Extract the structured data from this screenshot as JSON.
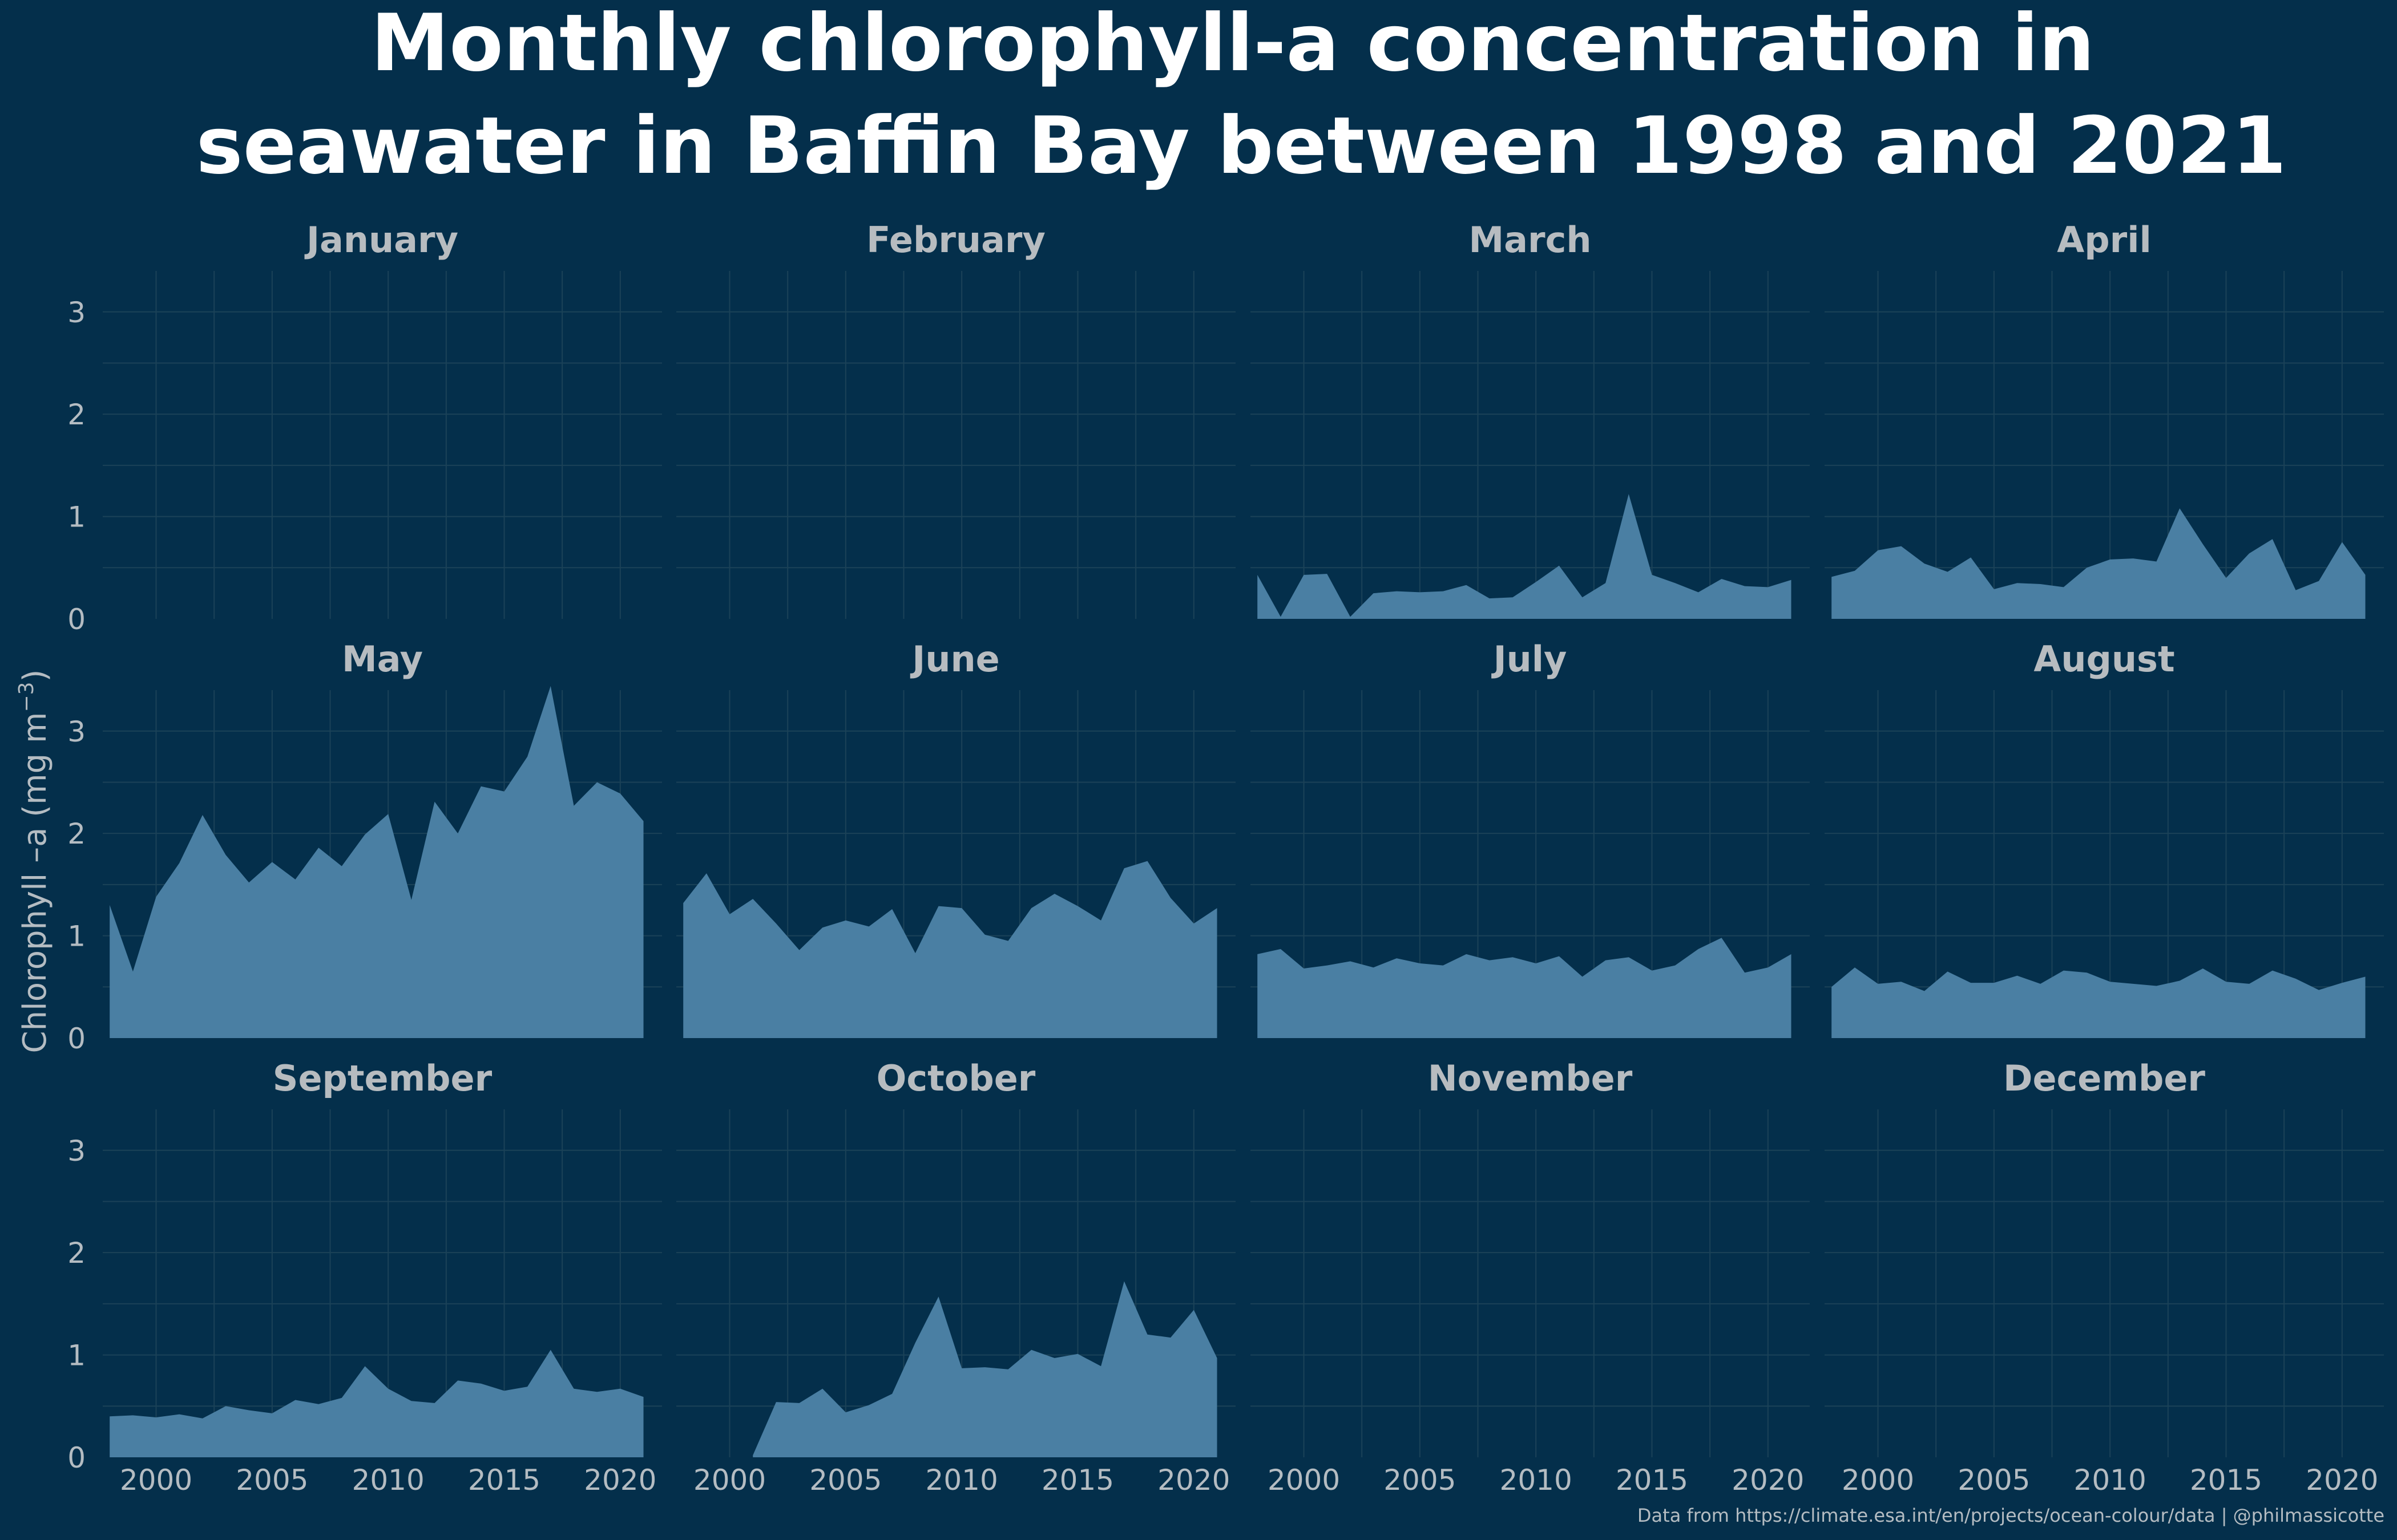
{
  "chart_data": {
    "type": "area",
    "title": [
      "Monthly chlorophyll-a concentration in",
      "seawater in Baffin Bay between 1998 and 2021"
    ],
    "ylabel": "Chlorophyll –a (mg m",
    "ylabel_superscript": "−3",
    "ylabel_close": ")",
    "caption": "Data from https://climate.esa.int/en/projects/ocean-colour/data | @philmassicotte",
    "ylim": [
      0,
      3.4
    ],
    "xlim": [
      1997.7,
      2021.8
    ],
    "yticks": [
      0,
      1,
      2,
      3
    ],
    "xticks": [
      2000,
      2005,
      2010,
      2015,
      2020
    ],
    "grid": true,
    "fill_color": "#4a7fa3",
    "background_color": "#042f4b",
    "panels": [
      {
        "month": "January",
        "x": [],
        "values": []
      },
      {
        "month": "February",
        "x": [],
        "values": []
      },
      {
        "month": "March",
        "x": [
          1998,
          1999,
          2000,
          2001,
          2002,
          2003,
          2004,
          2005,
          2006,
          2007,
          2008,
          2009,
          2010,
          2011,
          2012,
          2013,
          2014,
          2015,
          2016,
          2017,
          2018,
          2019,
          2020,
          2021
        ],
        "values": [
          0.43,
          0.02,
          0.43,
          0.44,
          0.02,
          0.25,
          0.27,
          0.26,
          0.27,
          0.33,
          0.2,
          0.21,
          0.36,
          0.52,
          0.21,
          0.35,
          1.22,
          0.43,
          0.35,
          0.26,
          0.39,
          0.32,
          0.31,
          0.38
        ]
      },
      {
        "month": "April",
        "x": [
          1998,
          1999,
          2000,
          2001,
          2002,
          2003,
          2004,
          2005,
          2006,
          2007,
          2008,
          2009,
          2010,
          2011,
          2012,
          2013,
          2014,
          2015,
          2016,
          2017,
          2018,
          2019,
          2020,
          2021
        ],
        "values": [
          0.41,
          0.47,
          0.67,
          0.71,
          0.54,
          0.46,
          0.6,
          0.29,
          0.35,
          0.34,
          0.31,
          0.5,
          0.58,
          0.59,
          0.56,
          1.08,
          0.73,
          0.4,
          0.64,
          0.78,
          0.28,
          0.37,
          0.75,
          0.43
        ]
      },
      {
        "month": "May",
        "x": [
          1998,
          1999,
          2000,
          2001,
          2002,
          2003,
          2004,
          2005,
          2006,
          2007,
          2008,
          2009,
          2010,
          2011,
          2012,
          2013,
          2014,
          2015,
          2016,
          2017,
          2018,
          2019,
          2020,
          2021
        ],
        "values": [
          1.3,
          0.65,
          1.38,
          1.71,
          2.18,
          1.79,
          1.52,
          1.72,
          1.55,
          1.86,
          1.68,
          1.99,
          2.19,
          1.35,
          2.31,
          2.0,
          2.46,
          2.41,
          2.75,
          3.44,
          2.27,
          2.5,
          2.39,
          2.12
        ]
      },
      {
        "month": "June",
        "x": [
          1998,
          1999,
          2000,
          2001,
          2002,
          2003,
          2004,
          2005,
          2006,
          2007,
          2008,
          2009,
          2010,
          2011,
          2012,
          2013,
          2014,
          2015,
          2016,
          2017,
          2018,
          2019,
          2020,
          2021
        ],
        "values": [
          1.32,
          1.61,
          1.21,
          1.36,
          1.12,
          0.86,
          1.08,
          1.15,
          1.09,
          1.26,
          0.83,
          1.29,
          1.27,
          1.01,
          0.95,
          1.27,
          1.41,
          1.29,
          1.15,
          1.66,
          1.73,
          1.37,
          1.12,
          1.27
        ]
      },
      {
        "month": "July",
        "x": [
          1998,
          1999,
          2000,
          2001,
          2002,
          2003,
          2004,
          2005,
          2006,
          2007,
          2008,
          2009,
          2010,
          2011,
          2012,
          2013,
          2014,
          2015,
          2016,
          2017,
          2018,
          2019,
          2020,
          2021
        ],
        "values": [
          0.82,
          0.87,
          0.68,
          0.71,
          0.75,
          0.69,
          0.78,
          0.73,
          0.71,
          0.82,
          0.76,
          0.79,
          0.73,
          0.8,
          0.6,
          0.76,
          0.79,
          0.66,
          0.71,
          0.87,
          0.98,
          0.64,
          0.69,
          0.82
        ]
      },
      {
        "month": "August",
        "x": [
          1998,
          1999,
          2000,
          2001,
          2002,
          2003,
          2004,
          2005,
          2006,
          2007,
          2008,
          2009,
          2010,
          2011,
          2012,
          2013,
          2014,
          2015,
          2016,
          2017,
          2018,
          2019,
          2020,
          2021
        ],
        "values": [
          0.5,
          0.69,
          0.53,
          0.55,
          0.46,
          0.65,
          0.54,
          0.54,
          0.61,
          0.53,
          0.66,
          0.64,
          0.55,
          0.53,
          0.51,
          0.56,
          0.68,
          0.55,
          0.53,
          0.66,
          0.58,
          0.47,
          0.54,
          0.6
        ]
      },
      {
        "month": "September",
        "x": [
          1998,
          1999,
          2000,
          2001,
          2002,
          2003,
          2004,
          2005,
          2006,
          2007,
          2008,
          2009,
          2010,
          2011,
          2012,
          2013,
          2014,
          2015,
          2016,
          2017,
          2018,
          2019,
          2020,
          2021
        ],
        "values": [
          0.4,
          0.41,
          0.39,
          0.42,
          0.38,
          0.5,
          0.46,
          0.43,
          0.56,
          0.52,
          0.58,
          0.89,
          0.67,
          0.55,
          0.53,
          0.75,
          0.72,
          0.65,
          0.69,
          1.05,
          0.67,
          0.64,
          0.67,
          0.59
        ]
      },
      {
        "month": "October",
        "x": [
          1998,
          1999,
          2000,
          2001,
          2002,
          2003,
          2004,
          2005,
          2006,
          2007,
          2008,
          2009,
          2010,
          2011,
          2012,
          2013,
          2014,
          2015,
          2016,
          2017,
          2018,
          2019,
          2020,
          2021
        ],
        "values": [
          null,
          null,
          null,
          0.02,
          0.54,
          0.53,
          0.67,
          0.44,
          0.51,
          0.62,
          1.12,
          1.57,
          0.87,
          0.88,
          0.86,
          1.05,
          0.97,
          1.01,
          0.89,
          1.72,
          1.2,
          1.17,
          1.44,
          0.97
        ]
      },
      {
        "month": "November",
        "x": [],
        "values": []
      },
      {
        "month": "December",
        "x": [],
        "values": []
      }
    ]
  }
}
